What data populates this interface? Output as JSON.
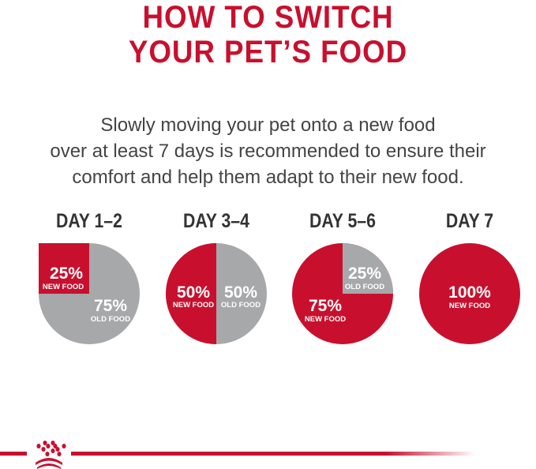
{
  "title": {
    "line1": "HOW TO SWITCH",
    "line2": "YOUR PET’S FOOD"
  },
  "intro": {
    "line1": "Slowly moving your pet onto a new food",
    "line2": "over at least 7 days is recommended to ensure their",
    "line3": "comfort and help them adapt to their new food."
  },
  "colors": {
    "new_food": "#c8102e",
    "old_food": "#a7a8aa",
    "headline": "#c8102e",
    "text": "#444444"
  },
  "steps": [
    {
      "day": "DAY 1–2",
      "new_pct": "25%",
      "new_label": "NEW FOOD",
      "old_pct": "75%",
      "old_label": "OLD FOOD",
      "new_value": 25
    },
    {
      "day": "DAY 3–4",
      "new_pct": "50%",
      "new_label": "NEW FOOD",
      "old_pct": "50%",
      "old_label": "OLD FOOD",
      "new_value": 50
    },
    {
      "day": "DAY 5–6",
      "new_pct": "75%",
      "new_label": "NEW FOOD",
      "old_pct": "25%",
      "old_label": "OLD FOOD",
      "new_value": 75
    },
    {
      "day": "DAY 7",
      "new_pct": "100%",
      "new_label": "NEW FOOD",
      "new_value": 100
    }
  ],
  "footer": {
    "logo_icon": "royal-canin-crown-icon"
  }
}
